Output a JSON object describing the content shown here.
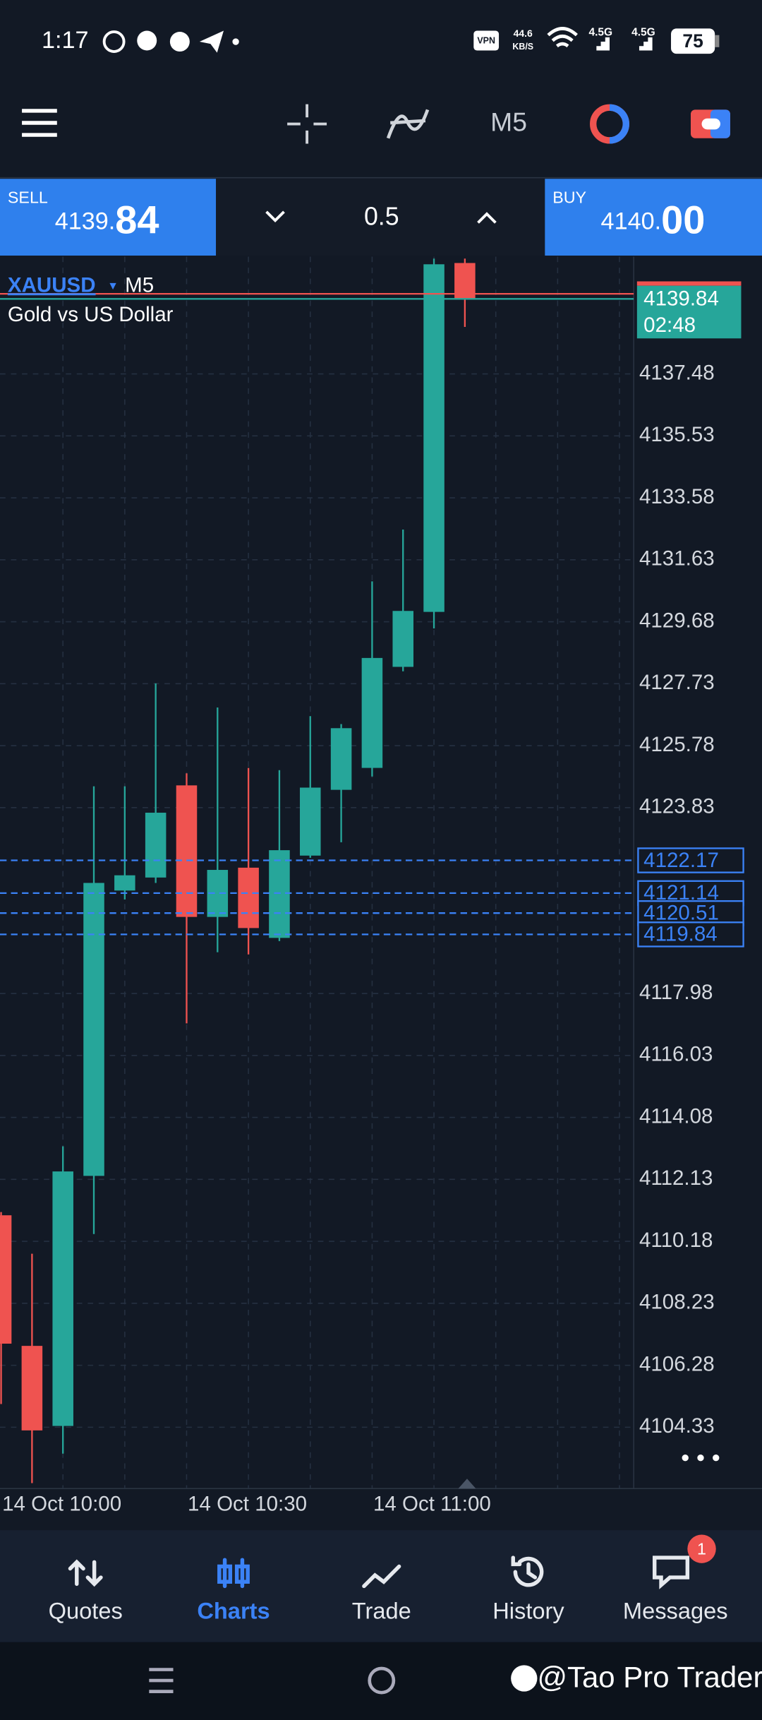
{
  "status_bar": {
    "time": "1:17",
    "vpn": "VPN",
    "network_speed": "44.6",
    "network_speed_unit": "KB/S",
    "signal_1": "4.5G",
    "signal_2": "4.5G",
    "battery": "75"
  },
  "toolbar": {
    "timeframe": "M5"
  },
  "trade_panel": {
    "sell_label": "SELL",
    "sell_price_main": "4139.",
    "sell_price_big": "84",
    "volume": "0.5",
    "buy_label": "BUY",
    "buy_price_main": "4140.",
    "buy_price_big": "00"
  },
  "chart_data": {
    "type": "candlestick",
    "symbol": "XAUUSD",
    "timeframe": "M5",
    "description": "Gold vs US Dollar",
    "categories": [
      "14 Oct 10:00",
      null,
      null,
      null,
      null,
      null,
      "14 Oct 10:30",
      null,
      null,
      null,
      null,
      null,
      "14 Oct 11:00",
      null,
      null,
      null
    ],
    "open": [
      4111.0,
      4106.89,
      4104.37,
      4112.24,
      4121.22,
      4121.63,
      4124.53,
      4120.39,
      4121.94,
      4119.73,
      4122.32,
      4124.39,
      4125.08,
      4128.26,
      4129.99,
      4140.97
    ],
    "high": [
      4111.1,
      4109.79,
      4113.17,
      4124.5,
      4124.5,
      4127.74,
      4124.91,
      4126.98,
      4125.08,
      4125.01,
      4126.71,
      4126.46,
      4130.95,
      4132.58,
      4141.11,
      4141.11
    ],
    "low": [
      4105.06,
      4102.57,
      4103.5,
      4110.41,
      4120.94,
      4121.46,
      4117.04,
      4119.28,
      4119.21,
      4119.63,
      4122.25,
      4122.74,
      4124.81,
      4128.12,
      4129.47,
      4138.96
    ],
    "close": [
      4106.96,
      4104.23,
      4112.38,
      4121.46,
      4121.7,
      4123.67,
      4120.39,
      4121.87,
      4120.04,
      4122.49,
      4124.46,
      4126.33,
      4128.54,
      4130.02,
      4140.93,
      4139.84
    ],
    "up_color": "#26a69a",
    "down_color": "#ef5350",
    "ylim": [
      4102.4,
      4141.1
    ],
    "yticks": [
      4104.33,
      4106.28,
      4108.23,
      4110.18,
      4112.13,
      4114.08,
      4116.03,
      4117.98,
      4123.83,
      4125.78,
      4127.73,
      4129.68,
      4131.63,
      4133.58,
      4135.53,
      4137.48
    ],
    "bid": 4139.84,
    "countdown": "02:48",
    "ask": 4140.0,
    "position_levels": [
      4122.17,
      4121.14,
      4120.51,
      4119.84
    ],
    "position_color": "#3b82f6",
    "grid": true
  },
  "nav": {
    "items": [
      "Quotes",
      "Charts",
      "Trade",
      "History",
      "Messages"
    ],
    "active": 1,
    "badge": "1"
  },
  "watermark": "@Tao Pro Trader"
}
